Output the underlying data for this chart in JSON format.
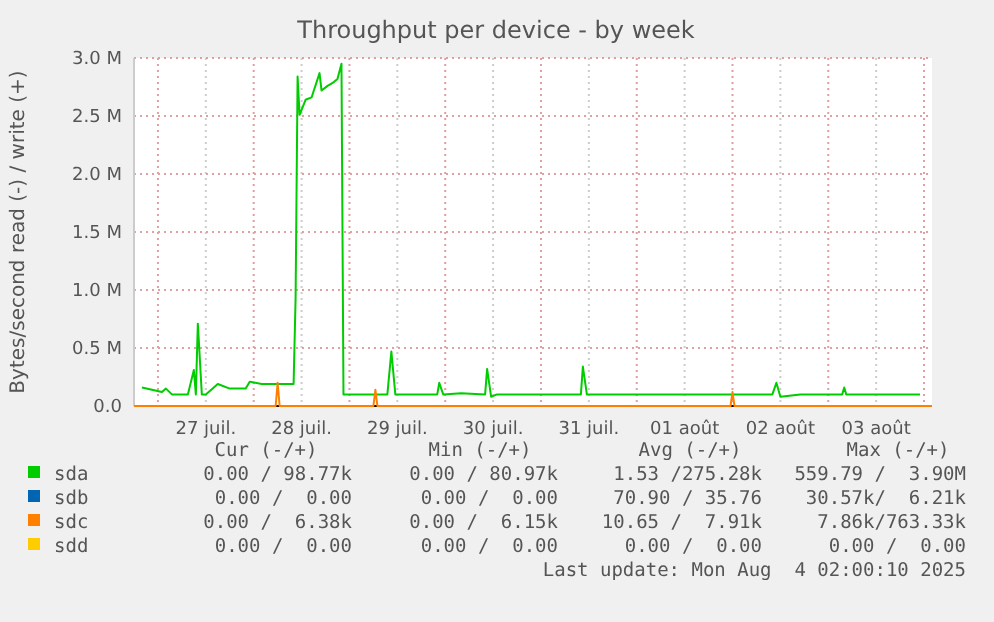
{
  "chart_data": {
    "type": "line",
    "title": "Throughput per device - by week",
    "ylabel": "Bytes/second read (-) / write (+)",
    "xlim": [
      "2025-07-26T18:00",
      "2025-08-04T02:00"
    ],
    "xticks": [
      {
        "value": "2025-07-27T00:00",
        "label": null
      },
      {
        "value": "2025-07-27T12:00",
        "label": "27 juil."
      },
      {
        "value": "2025-07-28T00:00",
        "label": null
      },
      {
        "value": "2025-07-28T12:00",
        "label": "28 juil."
      },
      {
        "value": "2025-07-29T00:00",
        "label": null
      },
      {
        "value": "2025-07-29T12:00",
        "label": "29 juil."
      },
      {
        "value": "2025-07-30T00:00",
        "label": null
      },
      {
        "value": "2025-07-30T12:00",
        "label": "30 juil."
      },
      {
        "value": "2025-07-31T00:00",
        "label": null
      },
      {
        "value": "2025-07-31T12:00",
        "label": "31 juil."
      },
      {
        "value": "2025-08-01T00:00",
        "label": null
      },
      {
        "value": "2025-08-01T12:00",
        "label": "01 août"
      },
      {
        "value": "2025-08-02T00:00",
        "label": null
      },
      {
        "value": "2025-08-02T12:00",
        "label": "02 août"
      },
      {
        "value": "2025-08-03T00:00",
        "label": null
      },
      {
        "value": "2025-08-03T12:00",
        "label": "03 août"
      },
      {
        "value": "2025-08-04T00:00",
        "label": null
      }
    ],
    "ylim": [
      0,
      3000000
    ],
    "yticks": [
      {
        "value": 0,
        "label": "0.0"
      },
      {
        "value": 500000,
        "label": "0.5 M"
      },
      {
        "value": 1000000,
        "label": "1.0 M"
      },
      {
        "value": 1500000,
        "label": "1.5 M"
      },
      {
        "value": 2000000,
        "label": "2.0 M"
      },
      {
        "value": 2500000,
        "label": "2.5 M"
      },
      {
        "value": 3000000,
        "label": "3.0 M"
      }
    ],
    "grid": true,
    "legend": "bottom",
    "series": [
      {
        "name": "sda",
        "color": "#00cc00",
        "x": [
          "2025-07-26T20:00",
          "2025-07-27T01:00",
          "2025-07-27T02:00",
          "2025-07-27T03:30",
          "2025-07-27T07:30",
          "2025-07-27T09:00",
          "2025-07-27T09:30",
          "2025-07-27T10:00",
          "2025-07-27T11:00",
          "2025-07-27T12:00",
          "2025-07-27T15:00",
          "2025-07-27T18:00",
          "2025-07-27T20:00",
          "2025-07-27T22:00",
          "2025-07-27T23:00",
          "2025-07-28T02:00",
          "2025-07-28T06:00",
          "2025-07-28T10:00",
          "2025-07-28T10:30",
          "2025-07-28T11:00",
          "2025-07-28T11:30",
          "2025-07-28T13:00",
          "2025-07-28T14:30",
          "2025-07-28T16:30",
          "2025-07-28T17:00",
          "2025-07-28T18:30",
          "2025-07-28T20:00",
          "2025-07-28T21:00",
          "2025-07-28T22:00",
          "2025-07-28T22:30",
          "2025-07-29T03:00",
          "2025-07-29T06:00",
          "2025-07-29T09:30",
          "2025-07-29T10:30",
          "2025-07-29T11:30",
          "2025-07-29T14:30",
          "2025-07-29T22:00",
          "2025-07-29T22:30",
          "2025-07-29T23:30",
          "2025-07-30T04:00",
          "2025-07-30T10:00",
          "2025-07-30T10:30",
          "2025-07-30T11:30",
          "2025-07-30T13:00",
          "2025-07-31T00:00",
          "2025-07-31T06:30",
          "2025-07-31T10:00",
          "2025-07-31T10:30",
          "2025-07-31T11:30",
          "2025-07-31T18:30",
          "2025-08-01T02:30",
          "2025-08-01T12:30",
          "2025-08-01T22:30",
          "2025-08-02T10:00",
          "2025-08-02T11:00",
          "2025-08-02T12:00",
          "2025-08-02T17:00",
          "2025-08-03T03:30",
          "2025-08-03T04:00",
          "2025-08-03T04:30",
          "2025-08-03T11:30",
          "2025-08-03T23:00"
        ],
        "values": [
          160000,
          120000,
          150000,
          100000,
          100000,
          310000,
          100000,
          710000,
          100000,
          100000,
          190000,
          150000,
          150000,
          150000,
          210000,
          190000,
          190000,
          190000,
          930000,
          2840000,
          2510000,
          2640000,
          2660000,
          2870000,
          2720000,
          2760000,
          2790000,
          2820000,
          2950000,
          100000,
          100000,
          100000,
          100000,
          470000,
          100000,
          100000,
          100000,
          200000,
          100000,
          110000,
          100000,
          320000,
          80000,
          100000,
          100000,
          100000,
          100000,
          340000,
          100000,
          100000,
          100000,
          100000,
          100000,
          100000,
          200000,
          80000,
          100000,
          100000,
          160000,
          100000,
          100000,
          100000
        ]
      },
      {
        "name": "sdb",
        "color": "#0066b3"
      },
      {
        "name": "sdc",
        "color": "#ff8000",
        "x": [
          "2025-07-26T18:00",
          "2025-07-28T05:30",
          "2025-07-28T06:00",
          "2025-07-28T06:30",
          "2025-07-29T06:00",
          "2025-07-29T06:30",
          "2025-07-29T07:00",
          "2025-08-01T23:30",
          "2025-08-02T00:00",
          "2025-08-02T00:30",
          "2025-08-04T02:00"
        ],
        "values": [
          0,
          0,
          200000,
          0,
          0,
          140000,
          0,
          0,
          120000,
          0,
          0
        ]
      },
      {
        "name": "sdd",
        "color": "#ffcc00"
      }
    ],
    "annotations": [
      "Cur (-/+)",
      "Min (-/+)",
      "Avg (-/+)",
      "Max (-/+)",
      "0.00 / 98.77k",
      "0.00 / 80.97k",
      "1.53 /275.28k",
      "559.79 /  3.90M",
      "0.00 /  0.00",
      "0.00 /  0.00",
      "70.90 / 35.76",
      "30.57k/  6.21k",
      "0.00 /  6.38k",
      "0.00 /  6.15k",
      "10.65 /  7.91k",
      "7.86k/763.33k",
      "0.00 /  0.00",
      "0.00 /  0.00",
      "0.00 /  0.00",
      "0.00 /  0.00",
      "Last update: Mon Aug  4 02:00:10 2025"
    ]
  }
}
